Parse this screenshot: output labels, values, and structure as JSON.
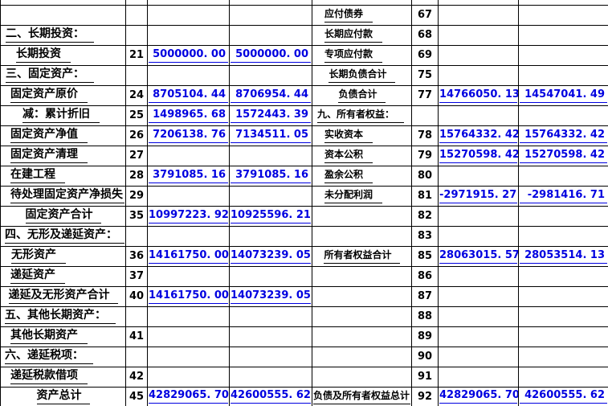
{
  "colors": {
    "value_text": "#0000e0",
    "label_text": "#000000",
    "grid_line": "#000000",
    "background": "#ffffff"
  },
  "rows": [
    {
      "left": {
        "label": "",
        "line": "",
        "v1": "",
        "v2": "",
        "align": "left",
        "indent": 0
      },
      "right": {
        "label": "应付债券",
        "line": "67",
        "v1": "",
        "v2": "",
        "align": "left",
        "indent": 15
      }
    },
    {
      "left": {
        "label": "二、长期投资：",
        "line": "",
        "v1": "",
        "v2": "",
        "align": "left",
        "indent": 6
      },
      "right": {
        "label": "长期应付款",
        "line": "68",
        "v1": "",
        "v2": "",
        "align": "left",
        "indent": 15
      }
    },
    {
      "left": {
        "label": "长期投资",
        "line": "21",
        "v1": "5000000. 00",
        "v2": "5000000. 00",
        "align": "left",
        "indent": 19
      },
      "right": {
        "label": "专项应付款",
        "line": "69",
        "v1": "",
        "v2": "",
        "align": "left",
        "indent": 15
      }
    },
    {
      "left": {
        "label": "三、固定资产：",
        "line": "",
        "v1": "",
        "v2": "",
        "align": "left",
        "indent": 6
      },
      "right": {
        "label": "长期负债合计",
        "line": "75",
        "v1": "",
        "v2": "",
        "align": "center",
        "indent": 0
      }
    },
    {
      "left": {
        "label": "固定资产原价",
        "line": "24",
        "v1": "8705104. 44",
        "v2": "8706954. 44",
        "align": "left",
        "indent": 12
      },
      "right": {
        "label": "负债合计",
        "line": "77",
        "v1": "14766050. 13",
        "v2": "14547041. 49",
        "align": "center",
        "indent": 0
      }
    },
    {
      "left": {
        "label": "减：累计折旧",
        "line": "25",
        "v1": "1498965. 68",
        "v2": "1572443. 39",
        "align": "left",
        "indent": 27
      },
      "right": {
        "label": "九、所有者权益：",
        "line": "",
        "v1": "",
        "v2": "",
        "align": "left",
        "indent": 6
      }
    },
    {
      "left": {
        "label": "固定资产净值",
        "line": "26",
        "v1": "7206138. 76",
        "v2": "7134511. 05",
        "align": "left",
        "indent": 12
      },
      "right": {
        "label": "实收资本",
        "line": "78",
        "v1": "15764332. 42",
        "v2": "15764332. 42",
        "align": "left",
        "indent": 15
      }
    },
    {
      "left": {
        "label": "固定资产清理",
        "line": "27",
        "v1": "",
        "v2": "",
        "align": "left",
        "indent": 12
      },
      "right": {
        "label": "资本公积",
        "line": "79",
        "v1": "15270598. 42",
        "v2": "15270598. 42",
        "align": "left",
        "indent": 15
      }
    },
    {
      "left": {
        "label": "在建工程",
        "line": "28",
        "v1": "3791085. 16",
        "v2": "3791085. 16",
        "align": "left",
        "indent": 12
      },
      "right": {
        "label": "盈余公积",
        "line": "80",
        "v1": "",
        "v2": "",
        "align": "left",
        "indent": 15
      }
    },
    {
      "left": {
        "label": "待处理固定资产净损失",
        "line": "29",
        "v1": "",
        "v2": "",
        "align": "left",
        "indent": 12
      },
      "right": {
        "label": "未分配利润",
        "line": "81",
        "v1": "-2971915. 27",
        "v2": "-2981416. 71",
        "align": "left",
        "indent": 15
      }
    },
    {
      "left": {
        "label": "固定资产合计",
        "line": "35",
        "v1": "10997223. 92",
        "v2": "10925596. 21",
        "align": "center",
        "indent": 0
      },
      "right": {
        "label": "",
        "line": "82",
        "v1": "",
        "v2": "",
        "align": "left",
        "indent": 0
      }
    },
    {
      "left": {
        "label": "四、无形及递延资产：",
        "line": "",
        "v1": "",
        "v2": "",
        "align": "left",
        "indent": 5
      },
      "right": {
        "label": "",
        "line": "83",
        "v1": "",
        "v2": "",
        "align": "left",
        "indent": 0
      }
    },
    {
      "left": {
        "label": "无形资产",
        "line": "36",
        "v1": "14161750. 00",
        "v2": "14073239. 05",
        "align": "left",
        "indent": 13
      },
      "right": {
        "label": "所有者权益合计",
        "line": "85",
        "v1": "28063015. 57",
        "v2": "28053514. 13",
        "align": "center",
        "indent": 0
      }
    },
    {
      "left": {
        "label": "递延资产",
        "line": "37",
        "v1": "",
        "v2": "",
        "align": "left",
        "indent": 12
      },
      "right": {
        "label": "",
        "line": "86",
        "v1": "",
        "v2": "",
        "align": "left",
        "indent": 0
      }
    },
    {
      "left": {
        "label": "递延及无形资产合计",
        "line": "40",
        "v1": "14161750. 00",
        "v2": "14073239. 05",
        "align": "center",
        "indent": 0
      },
      "right": {
        "label": "",
        "line": "87",
        "v1": "",
        "v2": "",
        "align": "left",
        "indent": 0
      }
    },
    {
      "left": {
        "label": "五、其他长期资产：",
        "line": "",
        "v1": "",
        "v2": "",
        "align": "left",
        "indent": 5
      },
      "right": {
        "label": "",
        "line": "88",
        "v1": "",
        "v2": "",
        "align": "left",
        "indent": 0
      }
    },
    {
      "left": {
        "label": "其他长期资产",
        "line": "41",
        "v1": "",
        "v2": "",
        "align": "left",
        "indent": 12
      },
      "right": {
        "label": "",
        "line": "89",
        "v1": "",
        "v2": "",
        "align": "left",
        "indent": 0
      }
    },
    {
      "left": {
        "label": "六、递延税项：",
        "line": "",
        "v1": "",
        "v2": "",
        "align": "left",
        "indent": 5
      },
      "right": {
        "label": "",
        "line": "90",
        "v1": "",
        "v2": "",
        "align": "left",
        "indent": 0
      }
    },
    {
      "left": {
        "label": "递延税款借项",
        "line": "42",
        "v1": "",
        "v2": "",
        "align": "left",
        "indent": 12
      },
      "right": {
        "label": "",
        "line": "91",
        "v1": "",
        "v2": "",
        "align": "left",
        "indent": 0
      }
    },
    {
      "left": {
        "label": "资产总计",
        "line": "45",
        "v1": "42829065. 70",
        "v2": "42600555. 62",
        "align": "center",
        "indent": 0
      },
      "right": {
        "label": "负债及所有者权益总计",
        "line": "92",
        "v1": "42829065. 70",
        "v2": "42600555. 62",
        "align": "left",
        "indent": 1
      }
    }
  ]
}
